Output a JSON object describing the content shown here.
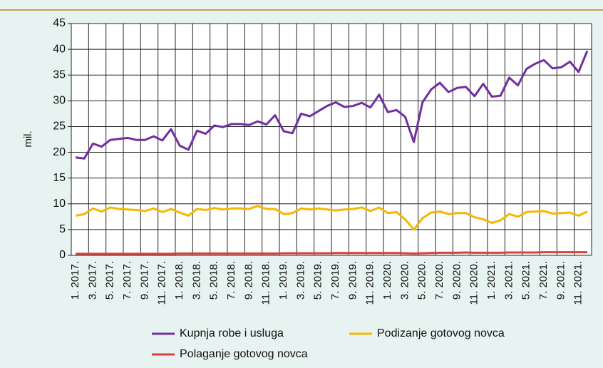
{
  "chart_data": {
    "type": "line",
    "ylabel": "mil.",
    "categories": [
      "1. 2017.",
      null,
      "3. 2017.",
      null,
      "5. 2017.",
      null,
      "7. 2017.",
      null,
      "9. 2017.",
      null,
      "11. 2017.",
      null,
      "1. 2018.",
      null,
      "3. 2018.",
      null,
      "5. 2018.",
      null,
      "7. 2018.",
      null,
      "9. 2018.",
      null,
      "11. 2018.",
      null,
      "1. 2019.",
      null,
      "3. 2019.",
      null,
      "5. 2019.",
      null,
      "7. 2019.",
      null,
      "9. 2019.",
      null,
      "11. 2019.",
      null,
      "1. 2020.",
      null,
      "3. 2020.",
      null,
      "5. 2020.",
      null,
      "7. 2020.",
      null,
      "9. 2020.",
      null,
      "11. 2020.",
      null,
      "1. 2021.",
      null,
      "3. 2021.",
      null,
      "5. 2021.",
      null,
      "7. 2021.",
      null,
      "9. 2021.",
      null,
      "11. 2021.",
      null
    ],
    "series": [
      {
        "name": "Kupnja robe i usluga",
        "color": "#7030a0",
        "values": [
          19.0,
          18.8,
          21.7,
          21.1,
          22.4,
          22.6,
          22.8,
          22.4,
          22.4,
          23.1,
          22.3,
          24.5,
          21.3,
          20.5,
          24.2,
          23.6,
          25.2,
          24.9,
          25.5,
          25.5,
          25.3,
          26.0,
          25.4,
          27.2,
          24.1,
          23.7,
          27.5,
          27.0,
          28.0,
          29.0,
          29.7,
          28.8,
          29.0,
          29.6,
          28.7,
          31.2,
          27.8,
          28.2,
          26.9,
          22.0,
          29.7,
          32.2,
          33.5,
          31.7,
          32.5,
          32.7,
          30.9,
          33.3,
          30.8,
          31.0,
          34.5,
          33.0,
          36.2,
          37.2,
          37.9,
          36.3,
          36.5,
          37.6,
          35.6,
          39.7
        ]
      },
      {
        "name": "Podizanje gotovog novca",
        "color": "#f5b800",
        "values": [
          7.7,
          8.0,
          9.1,
          8.5,
          9.3,
          9.0,
          8.9,
          8.8,
          8.6,
          9.1,
          8.4,
          9.0,
          8.3,
          7.7,
          9.0,
          8.8,
          9.2,
          8.9,
          9.1,
          9.1,
          9.0,
          9.6,
          9.0,
          9.0,
          8.0,
          8.2,
          9.1,
          8.9,
          9.1,
          8.9,
          8.7,
          8.9,
          9.0,
          9.3,
          8.6,
          9.3,
          8.2,
          8.4,
          7.0,
          5.0,
          7.2,
          8.3,
          8.5,
          8.0,
          8.2,
          8.2,
          7.4,
          7.0,
          6.3,
          6.8,
          8.0,
          7.5,
          8.4,
          8.5,
          8.6,
          8.1,
          8.2,
          8.3,
          7.7,
          8.5
        ]
      },
      {
        "name": "Polaganje gotovog novca",
        "color": "#d9423a",
        "values": [
          0.3,
          0.3,
          0.3,
          0.3,
          0.3,
          0.3,
          0.3,
          0.3,
          0.3,
          0.3,
          0.3,
          0.3,
          0.35,
          0.35,
          0.35,
          0.35,
          0.35,
          0.35,
          0.35,
          0.35,
          0.35,
          0.35,
          0.35,
          0.35,
          0.4,
          0.4,
          0.4,
          0.4,
          0.4,
          0.4,
          0.45,
          0.45,
          0.45,
          0.45,
          0.45,
          0.45,
          0.45,
          0.45,
          0.4,
          0.35,
          0.4,
          0.45,
          0.5,
          0.5,
          0.5,
          0.55,
          0.5,
          0.5,
          0.5,
          0.5,
          0.55,
          0.55,
          0.55,
          0.55,
          0.6,
          0.6,
          0.6,
          0.6,
          0.6,
          0.6
        ]
      }
    ],
    "ylim": [
      0,
      45
    ],
    "yticks": [
      0,
      5,
      10,
      15,
      20,
      25,
      30,
      35,
      40,
      45
    ],
    "grid": true
  }
}
